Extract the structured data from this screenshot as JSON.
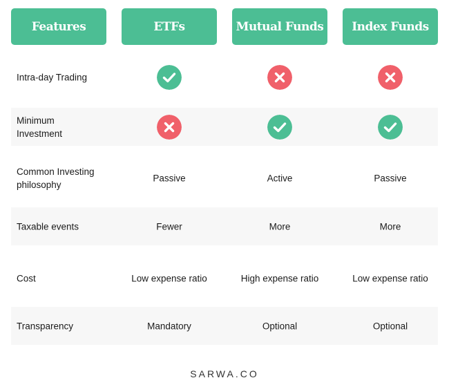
{
  "colors": {
    "accent": "#4cbe94",
    "check": "#4cbe94",
    "cross": "#f0606a",
    "row_shade": "#f7f7f7"
  },
  "headers": [
    "Features",
    "ETFs",
    "Mutual Funds",
    "Index Funds"
  ],
  "rows": [
    {
      "label": "Intra-day Trading",
      "cells": [
        {
          "icon": "check-icon"
        },
        {
          "icon": "cross-icon"
        },
        {
          "icon": "cross-icon"
        }
      ]
    },
    {
      "label": "Minimum Investment",
      "cells": [
        {
          "icon": "cross-icon"
        },
        {
          "icon": "check-icon"
        },
        {
          "icon": "check-icon"
        }
      ]
    },
    {
      "label": "Common Investing philosophy",
      "cells": [
        {
          "text": "Passive"
        },
        {
          "text": "Active"
        },
        {
          "text": "Passive"
        }
      ]
    },
    {
      "label": "Taxable events",
      "cells": [
        {
          "text": "Fewer"
        },
        {
          "text": "More"
        },
        {
          "text": "More"
        }
      ]
    },
    {
      "label": "Cost",
      "cells": [
        {
          "text": "Low expense ratio"
        },
        {
          "text": "High expense ratio"
        },
        {
          "text": "Low expense ratio"
        }
      ]
    },
    {
      "label": "Transparency",
      "cells": [
        {
          "text": "Mandatory"
        },
        {
          "text": "Optional"
        },
        {
          "text": "Optional"
        }
      ]
    }
  ],
  "footer": "SARWA.CO"
}
